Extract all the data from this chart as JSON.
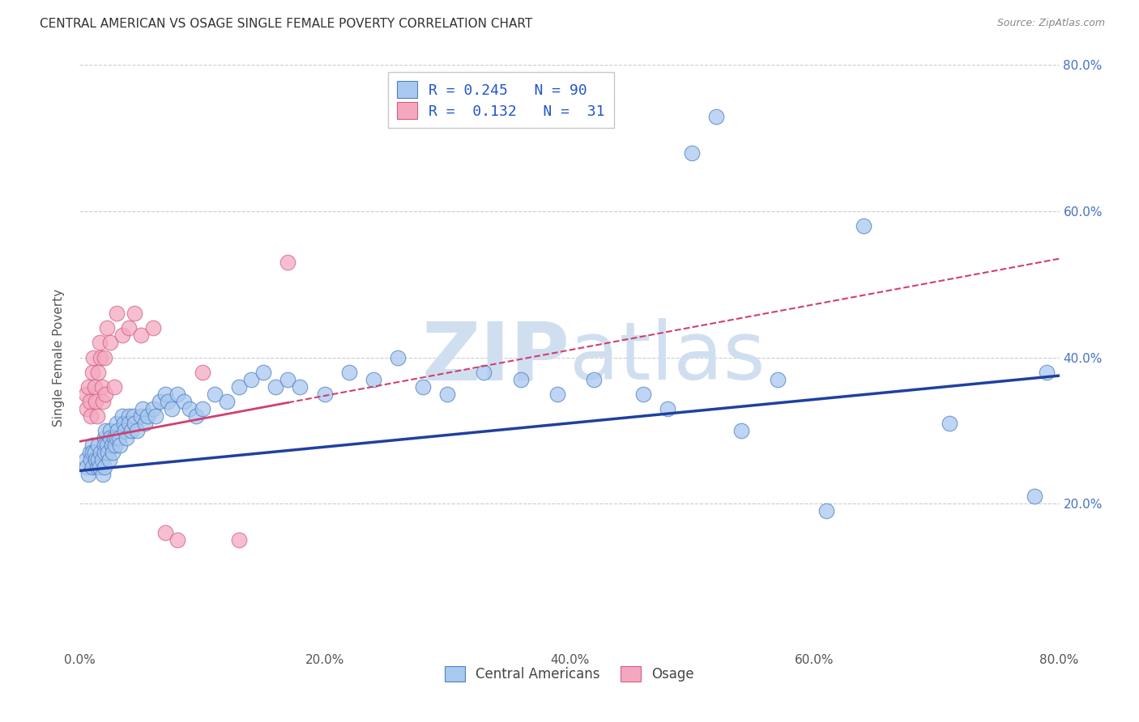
{
  "title": "CENTRAL AMERICAN VS OSAGE SINGLE FEMALE POVERTY CORRELATION CHART",
  "source": "Source: ZipAtlas.com",
  "ylabel": "Single Female Poverty",
  "xlabel": "",
  "xlim": [
    0,
    0.8
  ],
  "ylim": [
    0,
    0.8
  ],
  "xtick_labels": [
    "0.0%",
    "20.0%",
    "40.0%",
    "60.0%",
    "80.0%"
  ],
  "xtick_vals": [
    0.0,
    0.2,
    0.4,
    0.6,
    0.8
  ],
  "ytick_labels_right": [
    "20.0%",
    "40.0%",
    "60.0%",
    "80.0%"
  ],
  "ytick_vals_right": [
    0.2,
    0.4,
    0.6,
    0.8
  ],
  "blue_R": 0.245,
  "blue_N": 90,
  "pink_R": 0.132,
  "pink_N": 31,
  "blue_color": "#A8C8F0",
  "pink_color": "#F4A8C0",
  "blue_edge_color": "#5080C0",
  "pink_edge_color": "#D06080",
  "blue_line_color": "#2040A0",
  "pink_line_color": "#D04070",
  "watermark_color": "#D0DFF0",
  "background_color": "#FFFFFF",
  "blue_scatter_x": [
    0.005,
    0.006,
    0.007,
    0.008,
    0.009,
    0.01,
    0.01,
    0.01,
    0.012,
    0.013,
    0.014,
    0.015,
    0.015,
    0.016,
    0.017,
    0.018,
    0.019,
    0.02,
    0.02,
    0.02,
    0.02,
    0.021,
    0.022,
    0.023,
    0.024,
    0.025,
    0.025,
    0.026,
    0.027,
    0.028,
    0.029,
    0.03,
    0.03,
    0.031,
    0.032,
    0.033,
    0.035,
    0.036,
    0.037,
    0.038,
    0.04,
    0.04,
    0.042,
    0.044,
    0.045,
    0.047,
    0.05,
    0.051,
    0.053,
    0.055,
    0.06,
    0.062,
    0.065,
    0.07,
    0.072,
    0.075,
    0.08,
    0.085,
    0.09,
    0.095,
    0.1,
    0.11,
    0.12,
    0.13,
    0.14,
    0.15,
    0.16,
    0.17,
    0.18,
    0.2,
    0.22,
    0.24,
    0.26,
    0.28,
    0.3,
    0.33,
    0.36,
    0.39,
    0.42,
    0.46,
    0.48,
    0.5,
    0.52,
    0.54,
    0.57,
    0.61,
    0.64,
    0.71,
    0.78,
    0.79
  ],
  "blue_scatter_y": [
    0.26,
    0.25,
    0.24,
    0.27,
    0.26,
    0.28,
    0.27,
    0.25,
    0.27,
    0.26,
    0.25,
    0.28,
    0.26,
    0.25,
    0.27,
    0.26,
    0.24,
    0.29,
    0.28,
    0.27,
    0.25,
    0.3,
    0.28,
    0.27,
    0.26,
    0.3,
    0.29,
    0.28,
    0.27,
    0.29,
    0.28,
    0.31,
    0.29,
    0.3,
    0.29,
    0.28,
    0.32,
    0.31,
    0.3,
    0.29,
    0.32,
    0.31,
    0.3,
    0.32,
    0.31,
    0.3,
    0.32,
    0.33,
    0.31,
    0.32,
    0.33,
    0.32,
    0.34,
    0.35,
    0.34,
    0.33,
    0.35,
    0.34,
    0.33,
    0.32,
    0.33,
    0.35,
    0.34,
    0.36,
    0.37,
    0.38,
    0.36,
    0.37,
    0.36,
    0.35,
    0.38,
    0.37,
    0.4,
    0.36,
    0.35,
    0.38,
    0.37,
    0.35,
    0.37,
    0.35,
    0.33,
    0.68,
    0.73,
    0.3,
    0.37,
    0.19,
    0.58,
    0.31,
    0.21,
    0.38
  ],
  "pink_scatter_x": [
    0.005,
    0.006,
    0.007,
    0.008,
    0.009,
    0.01,
    0.011,
    0.012,
    0.013,
    0.014,
    0.015,
    0.016,
    0.017,
    0.018,
    0.019,
    0.02,
    0.021,
    0.022,
    0.025,
    0.028,
    0.03,
    0.035,
    0.04,
    0.045,
    0.05,
    0.06,
    0.07,
    0.08,
    0.1,
    0.13,
    0.17
  ],
  "pink_scatter_y": [
    0.35,
    0.33,
    0.36,
    0.34,
    0.32,
    0.38,
    0.4,
    0.36,
    0.34,
    0.32,
    0.38,
    0.42,
    0.4,
    0.36,
    0.34,
    0.4,
    0.35,
    0.44,
    0.42,
    0.36,
    0.46,
    0.43,
    0.44,
    0.46,
    0.43,
    0.44,
    0.16,
    0.15,
    0.38,
    0.15,
    0.53
  ],
  "blue_line_x0": 0.0,
  "blue_line_y0": 0.245,
  "blue_line_x1": 0.8,
  "blue_line_y1": 0.375,
  "pink_line_x0": 0.0,
  "pink_line_y0": 0.285,
  "pink_line_x1": 0.8,
  "pink_line_y1": 0.535
}
